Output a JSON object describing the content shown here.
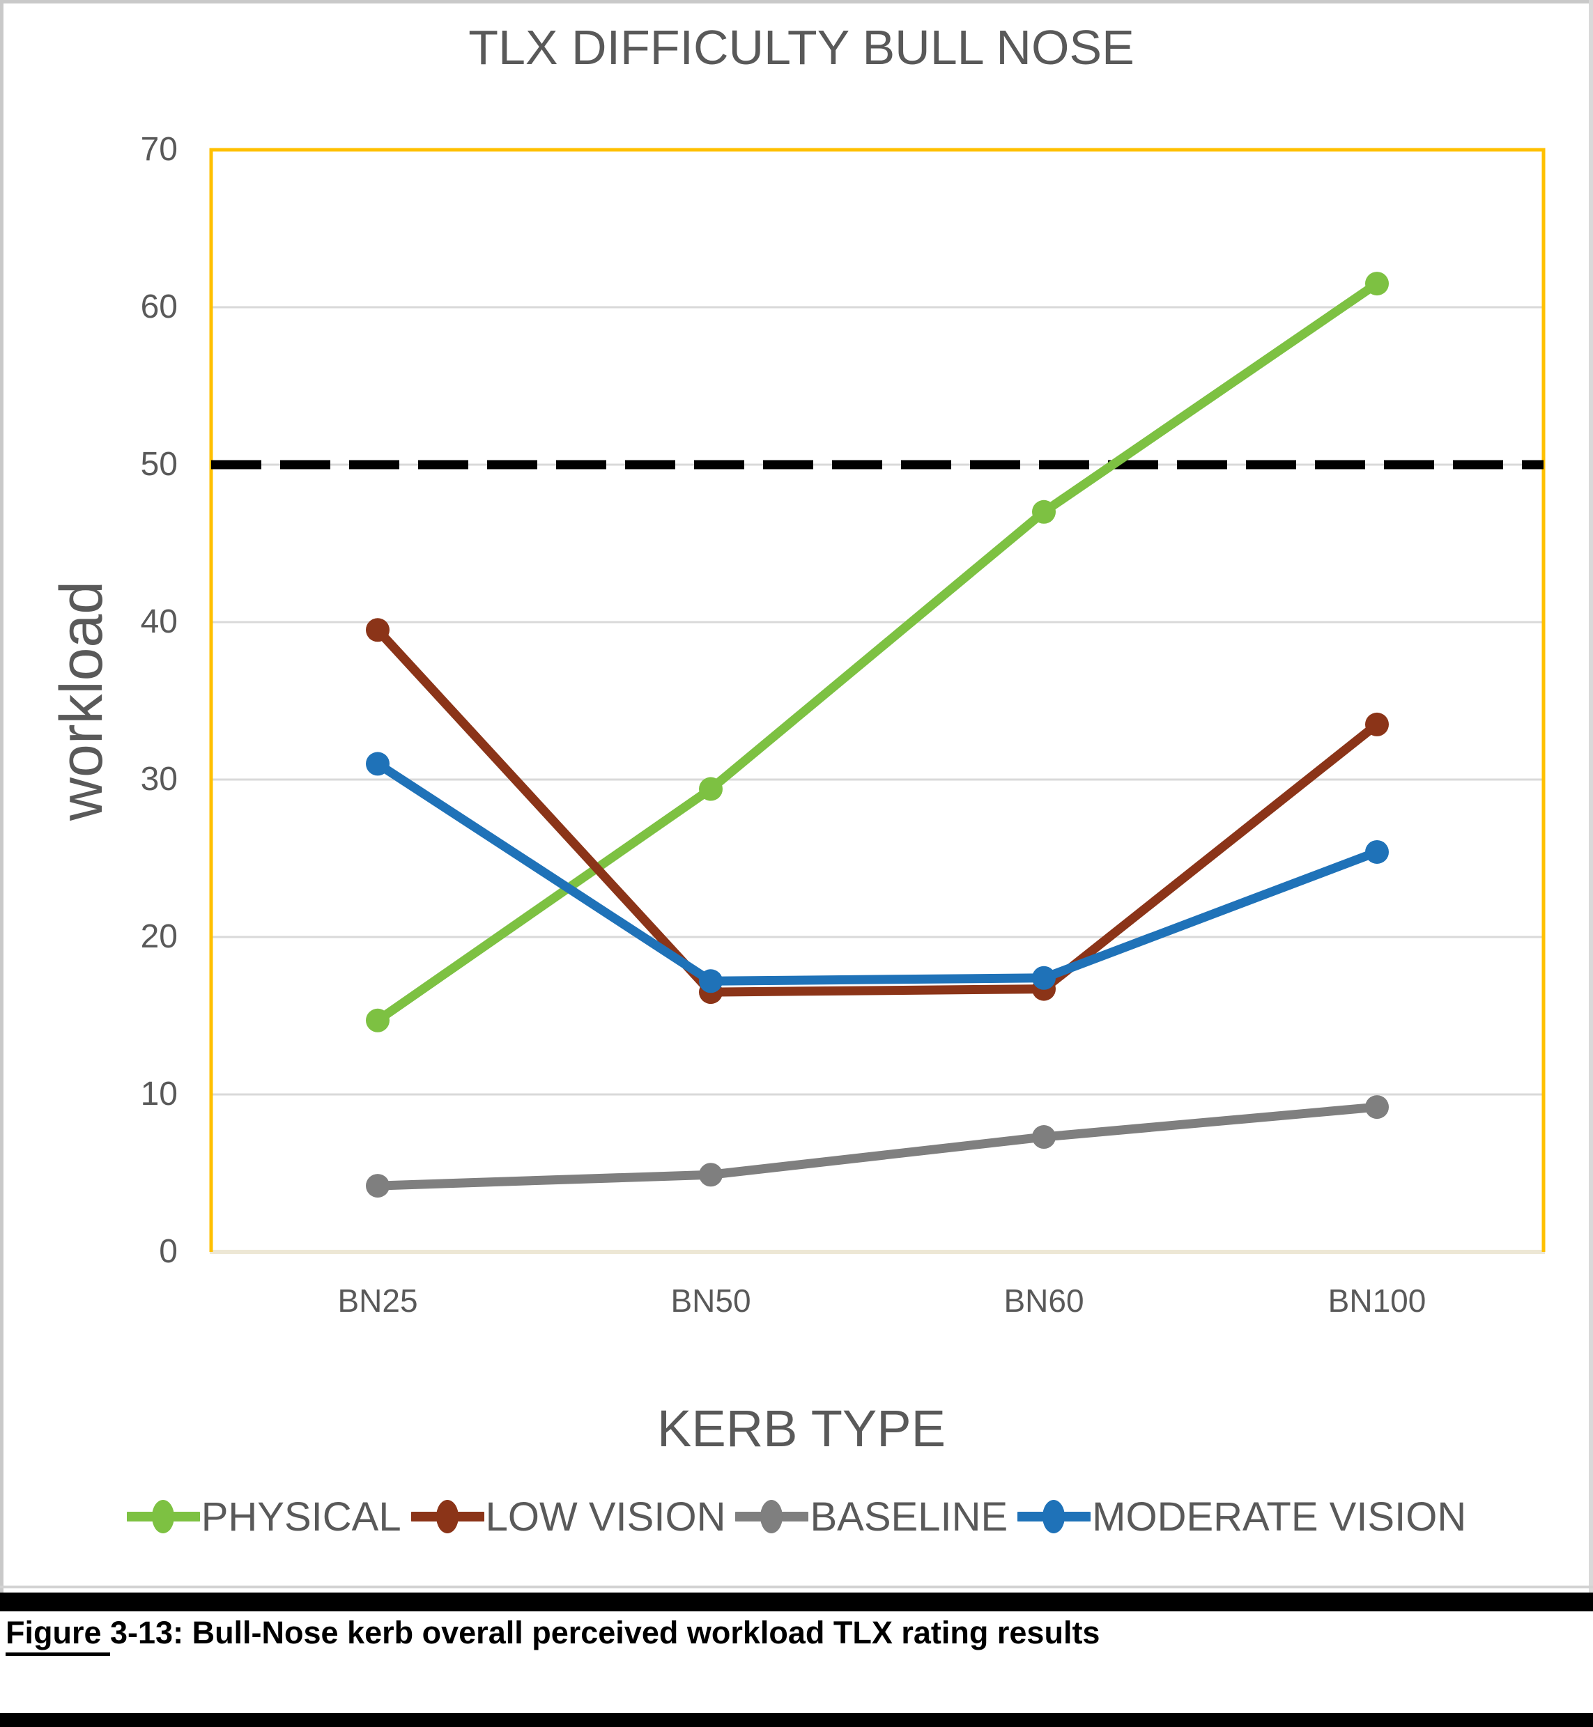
{
  "chart_data": {
    "type": "line",
    "title": "TLX DIFFICULTY BULL NOSE",
    "xlabel": "KERB TYPE",
    "ylabel": "workload",
    "categories": [
      "BN25",
      "BN50",
      "BN60",
      "BN100"
    ],
    "series": [
      {
        "name": "PHYSICAL",
        "color": "#7dc142",
        "values": [
          14.7,
          29.4,
          47.0,
          61.5
        ]
      },
      {
        "name": "LOW VISION",
        "color": "#8b3418",
        "values": [
          39.5,
          16.5,
          16.7,
          33.5
        ]
      },
      {
        "name": "BASELINE",
        "color": "#7f7f7f",
        "values": [
          4.2,
          4.9,
          7.3,
          9.2
        ]
      },
      {
        "name": "MODERATE VISION",
        "color": "#1f72b8",
        "values": [
          31.0,
          17.2,
          17.4,
          25.4
        ]
      }
    ],
    "ylim": [
      0,
      70
    ],
    "yticks": [
      0,
      10,
      20,
      30,
      40,
      50,
      60,
      70
    ],
    "grid": true,
    "legend_position": "bottom",
    "reference_line": {
      "value": 50,
      "style": "dashed",
      "color": "#000000"
    },
    "colors": {
      "plot_border": "#ffc000",
      "gridline": "#d9d9d9",
      "axis_text": "#595959",
      "category_axis_line": "#ede7d5"
    }
  },
  "caption": {
    "prefix": "Figure ",
    "rest": "3-13: Bull-Nose kerb overall perceived workload TLX rating results"
  }
}
